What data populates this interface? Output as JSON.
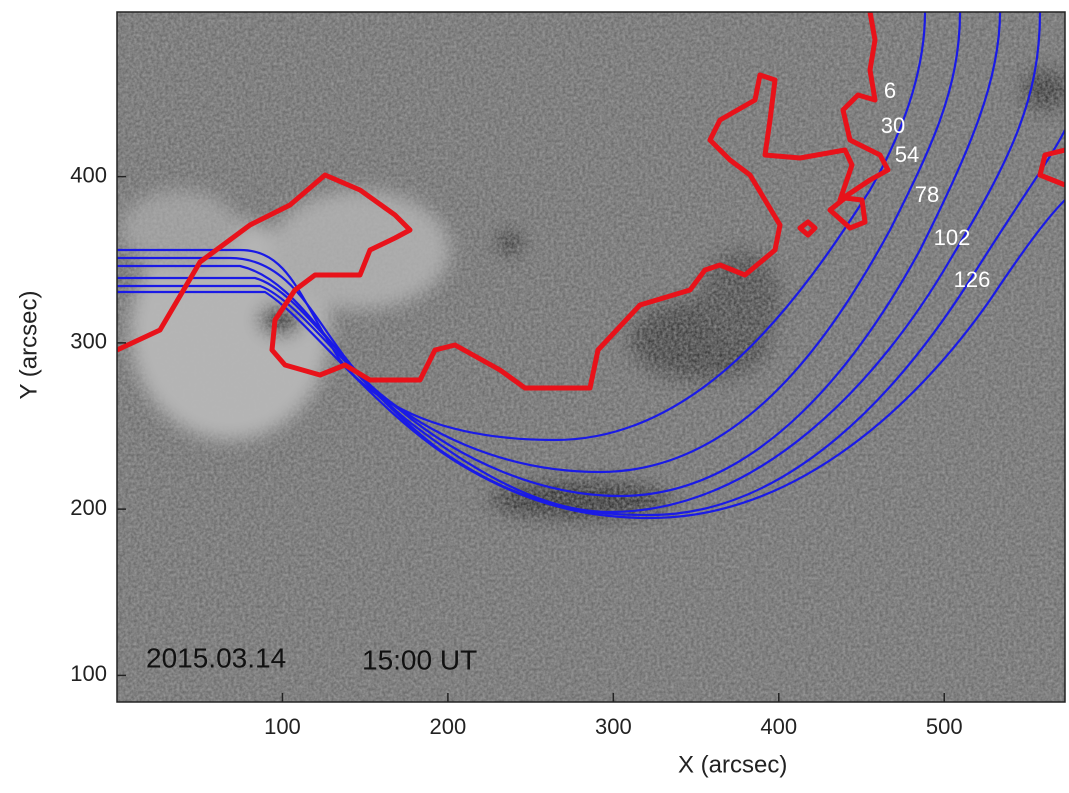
{
  "chart_data": {
    "type": "image",
    "x_label": "X (arcsec)",
    "y_label": "Y (arcsec)",
    "xlim": [
      0,
      573
    ],
    "ylim": [
      84,
      499
    ],
    "xticks": [
      100,
      200,
      300,
      400,
      500
    ],
    "yticks": [
      100,
      200,
      300,
      400
    ],
    "annotations": [
      "2015.03.14",
      "15:00 UT"
    ],
    "slit_labels": [
      "6",
      "30",
      "54",
      "78",
      "102",
      "126"
    ]
  }
}
